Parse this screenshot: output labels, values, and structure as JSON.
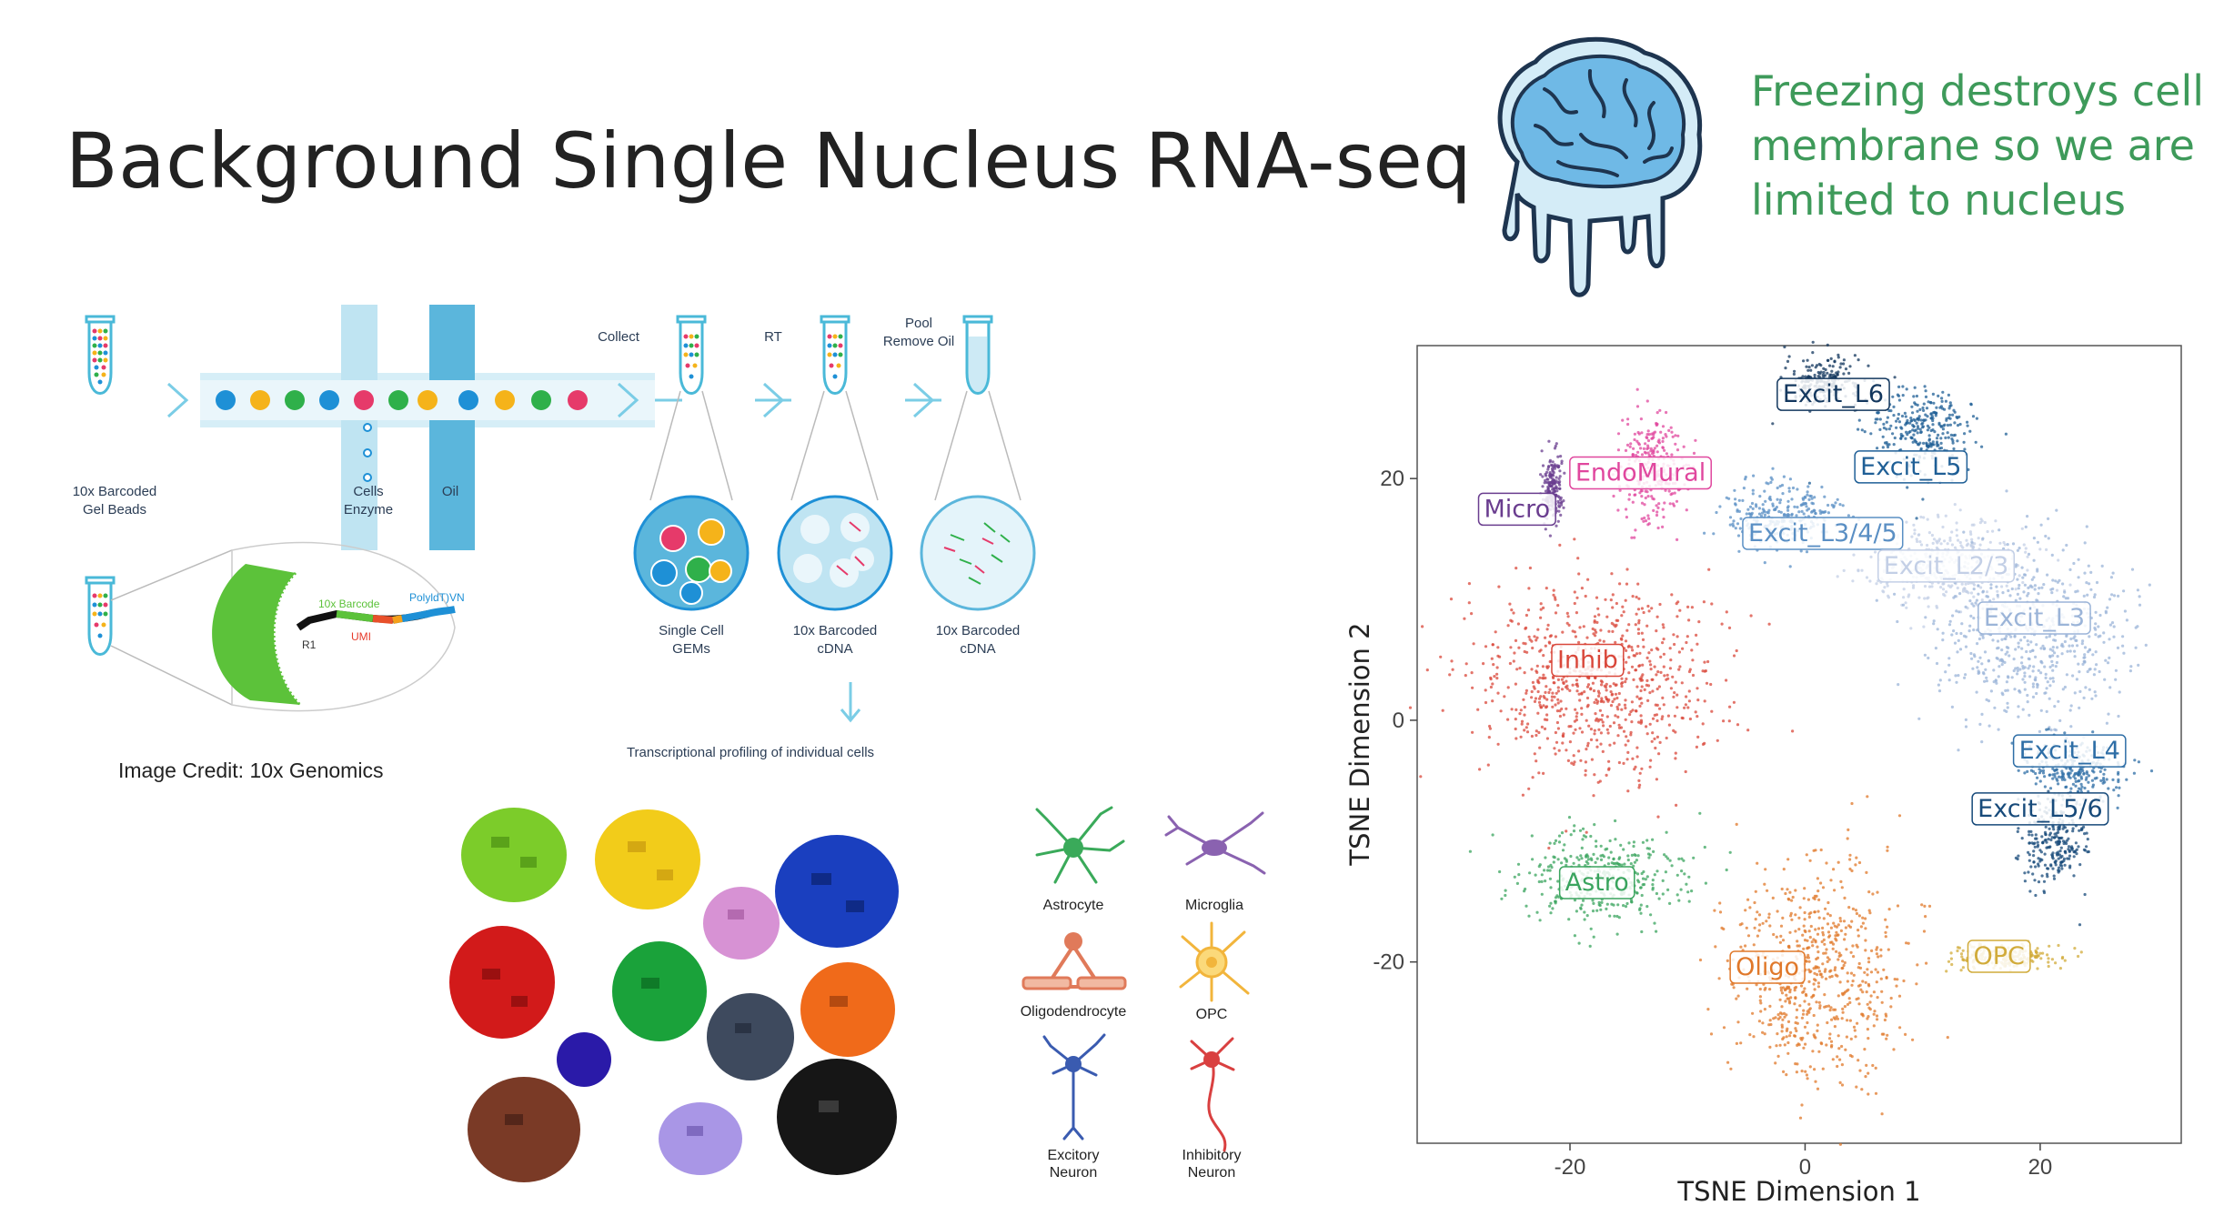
{
  "slide": {
    "title": "Background Single Nucleus RNA-seq",
    "note": "Freezing destroys cell membrane so we are limited to nucleus",
    "image_credit": "Image Credit: 10x Genomics"
  },
  "workflow": {
    "beads_label_1": "10x Barcoded",
    "beads_label_2": "Gel Beads",
    "cells_label_1": "Cells",
    "cells_label_2": "Enzyme",
    "oil_label": "Oil",
    "collect_label": "Collect",
    "rt_label": "RT",
    "pool_label_1": "Pool",
    "pool_label_2": "Remove Oil",
    "gems_label_1": "Single Cell",
    "gems_label_2": "GEMs",
    "cdna1_label_1": "10x Barcoded",
    "cdna1_label_2": "cDNA",
    "cdna2_label_1": "10x Barcoded",
    "cdna2_label_2": "cDNA",
    "profiling_label": "Transcriptional profiling of individual cells",
    "barcode_label": "10x Barcode",
    "polyd_label": "PolyldT)VN",
    "r1_label": "R1",
    "umi_label": "UMI"
  },
  "cell_types": [
    {
      "label": "Astrocyte",
      "color": "#3aaa5a"
    },
    {
      "label": "Microglia",
      "color": "#8a62b0"
    },
    {
      "label": "Oligodendrocyte",
      "color": "#e07a5a"
    },
    {
      "label": "OPC",
      "color": "#f2b53c"
    },
    {
      "label": "Excitory",
      "label2": "Neuron",
      "color": "#3a5bb0"
    },
    {
      "label": "Inhibitory",
      "label2": "Neuron",
      "color": "#d94040"
    }
  ],
  "chart_data": {
    "type": "scatter",
    "xlabel": "TSNE Dimension 1",
    "ylabel": "TSNE Dimension 2",
    "xlim": [
      -33,
      32
    ],
    "ylim": [
      -35,
      31
    ],
    "xticks": [
      -20,
      0,
      20
    ],
    "yticks": [
      20,
      0,
      -20
    ],
    "grid": false,
    "clusters": [
      {
        "name": "Excit_L6",
        "color": "#13375e",
        "cx": 1.5,
        "cy": 28,
        "rx": 3.5,
        "ry": 2.2,
        "lx": 2.4,
        "ly": 27.0
      },
      {
        "name": "Excit_L5",
        "color": "#1f5f96",
        "cx": 10,
        "cy": 24,
        "rx": 5,
        "ry": 4,
        "lx": 9.0,
        "ly": 21.0
      },
      {
        "name": "EndoMural",
        "color": "#e0479e",
        "cx": -13,
        "cy": 21,
        "rx": 3,
        "ry": 5,
        "lx": -14.0,
        "ly": 20.5
      },
      {
        "name": "Micro",
        "color": "#6a3d8f",
        "cx": -21.5,
        "cy": 19,
        "rx": 1,
        "ry": 3,
        "lx": -24.5,
        "ly": 17.5
      },
      {
        "name": "Excit_L3/4/5",
        "color": "#5a8fc4",
        "cx": -2,
        "cy": 17,
        "rx": 5,
        "ry": 3,
        "lx": 1.5,
        "ly": 15.5
      },
      {
        "name": "Excit_L2/3",
        "color": "#c3cfe6",
        "cx": 12,
        "cy": 13,
        "rx": 8,
        "ry": 4,
        "lx": 12.0,
        "ly": 12.8
      },
      {
        "name": "Excit_L3",
        "color": "#9bb4d8",
        "cx": 19,
        "cy": 7,
        "rx": 9,
        "ry": 8,
        "lx": 19.5,
        "ly": 8.5
      },
      {
        "name": "Inhib",
        "color": "#d9473a",
        "cx": -18,
        "cy": 3,
        "rx": 11,
        "ry": 9,
        "lx": -18.5,
        "ly": 5.0
      },
      {
        "name": "Excit_L4",
        "color": "#2e6ea6",
        "cx": 23,
        "cy": -4,
        "rx": 5,
        "ry": 3,
        "lx": 22.5,
        "ly": -2.5
      },
      {
        "name": "Excit_L5/6",
        "color": "#174a7a",
        "cx": 21,
        "cy": -10,
        "rx": 3,
        "ry": 4,
        "lx": 20.0,
        "ly": -7.3
      },
      {
        "name": "Astro",
        "color": "#3aa45e",
        "cx": -17,
        "cy": -13,
        "rx": 8,
        "ry": 4,
        "lx": -17.7,
        "ly": -13.4
      },
      {
        "name": "Oligo",
        "color": "#e0782a",
        "cx": 1,
        "cy": -21,
        "rx": 8,
        "ry": 10,
        "lx": -3.2,
        "ly": -20.4
      },
      {
        "name": "OPC",
        "color": "#d1ab3a",
        "cx": 17,
        "cy": -19.5,
        "rx": 5,
        "ry": 1.2,
        "lx": 16.5,
        "ly": -19.5
      }
    ]
  }
}
